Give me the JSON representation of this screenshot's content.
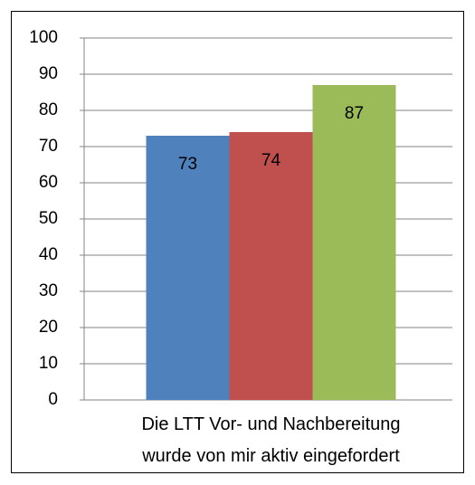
{
  "chart_data": {
    "type": "bar",
    "categories": [
      "Die LTT Vor- und Nachbereitung wurde von mir aktiv eingefordert"
    ],
    "series": [
      {
        "color": "#4f81bd",
        "values": [
          73
        ]
      },
      {
        "color": "#c0504d",
        "values": [
          74
        ]
      },
      {
        "color": "#9bbb59",
        "values": [
          87
        ]
      }
    ],
    "ylim": [
      0,
      100
    ],
    "yticks": [
      0,
      10,
      20,
      30,
      40,
      50,
      60,
      70,
      80,
      90,
      100
    ],
    "grid": true
  }
}
